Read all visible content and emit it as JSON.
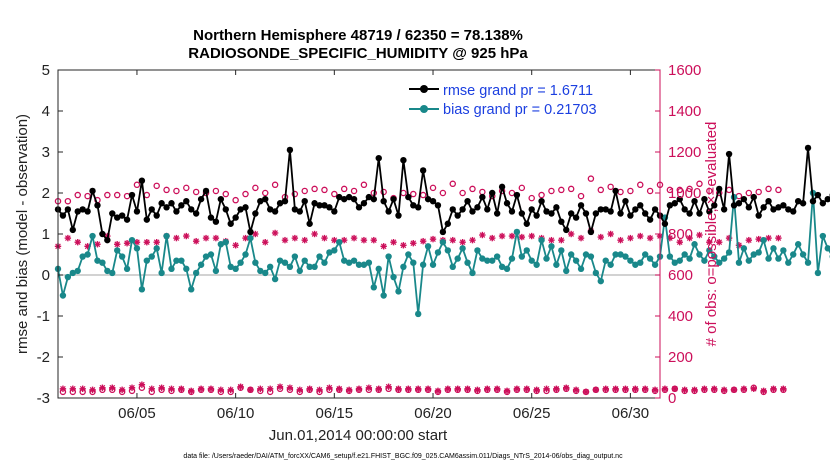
{
  "chart_data": {
    "type": "line",
    "title": "Northern Hemisphere 48719 / 62350 = 78.138%",
    "subtitle": "RADIOSONDE_SPECIFIC_HUMIDITY @ 925 hPa",
    "xlabel": "Jun.01,2014 00:00:00 start",
    "ylabel": "rmse and bias (model - observation)",
    "ylabel_right": "# of obs: o=possible; ×=evaluated",
    "footer": "data file: /Users/raeder/DAI/ATM_forcXX/CAM6_setup/f.e21.FHIST_BGC.f09_025.CAM6assim.011/Diags_NTrS_2014-06/obs_diag_output.nc",
    "xlim": [
      1.0,
      31.5
    ],
    "ylim": [
      -3,
      5
    ],
    "ylim_right": [
      0,
      1600
    ],
    "x_ticks": [
      5,
      10,
      15,
      20,
      25,
      30
    ],
    "x_tick_labels": [
      "06/05",
      "06/10",
      "06/15",
      "06/20",
      "06/25",
      "06/30"
    ],
    "y_ticks": [
      -3,
      -2,
      -1,
      0,
      1,
      2,
      3,
      4,
      5
    ],
    "y_tick_labels": [
      "-3",
      "-2",
      "-1",
      "0",
      "1",
      "2",
      "3",
      "4",
      "5"
    ],
    "y_right_ticks": [
      0,
      200,
      400,
      600,
      800,
      1000,
      1200,
      1400,
      1600
    ],
    "y_right_tick_labels": [
      "0",
      "200",
      "400",
      "600",
      "800",
      "1000",
      "1200",
      "1400",
      "1600"
    ],
    "legend": [
      "rmse grand pr = 1.6711",
      "bias grand pr = 0.21703"
    ],
    "legend_position": "top-right",
    "x_start": 1.0,
    "x_step": 0.25,
    "series": [
      {
        "name": "rmse",
        "color": "#000000",
        "values": [
          1.6,
          1.45,
          1.6,
          1.1,
          1.55,
          1.6,
          1.55,
          2.05,
          1.7,
          1.0,
          0.85,
          1.5,
          1.4,
          1.45,
          1.35,
          1.95,
          1.55,
          2.3,
          1.35,
          1.6,
          1.45,
          1.75,
          1.65,
          1.75,
          1.55,
          1.7,
          1.8,
          1.6,
          1.5,
          1.85,
          2.05,
          1.4,
          1.3,
          1.85,
          1.6,
          1.25,
          1.4,
          1.6,
          1.65,
          1.05,
          1.5,
          1.8,
          1.85,
          1.6,
          1.55,
          1.75,
          1.8,
          3.05,
          1.6,
          1.55,
          1.8,
          1.25,
          1.75,
          1.7,
          1.7,
          1.65,
          1.55,
          1.9,
          1.85,
          1.9,
          1.85,
          1.65,
          1.75,
          1.9,
          1.85,
          2.85,
          1.8,
          1.55,
          1.85,
          1.45,
          2.8,
          1.9,
          1.7,
          1.65,
          2.55,
          1.85,
          1.8,
          1.7,
          1.05,
          1.25,
          1.6,
          1.45,
          1.6,
          1.8,
          1.55,
          1.65,
          1.9,
          1.6,
          2.0,
          1.5,
          2.15,
          1.75,
          1.55,
          1.95,
          1.5,
          1.25,
          1.6,
          1.45,
          1.8,
          1.55,
          1.5,
          1.65,
          1.3,
          1.1,
          1.5,
          1.4,
          1.7,
          1.5,
          1.05,
          1.5,
          1.6,
          1.6,
          1.55,
          2.05,
          1.5,
          1.8,
          1.45,
          1.6,
          1.7,
          1.5,
          1.35,
          1.6,
          1.45,
          1.25,
          1.7,
          1.75,
          1.85,
          1.6,
          1.5,
          1.8,
          1.5,
          1.85,
          1.55,
          1.7,
          2.1,
          1.6,
          2.95,
          1.7,
          1.75,
          1.85,
          1.65,
          1.9,
          1.45,
          1.65,
          1.8,
          1.6,
          1.65,
          1.7,
          1.6,
          1.55,
          1.8,
          1.75,
          3.1,
          1.8,
          1.95,
          1.75,
          1.85,
          1.95,
          2.65
        ]
      },
      {
        "name": "bias",
        "color": "#19888a",
        "values": [
          0.15,
          -0.5,
          -0.05,
          0.05,
          0.1,
          0.45,
          0.5,
          0.95,
          0.35,
          0.3,
          0.1,
          0.05,
          0.6,
          0.45,
          0.15,
          0.85,
          0.65,
          -0.35,
          0.35,
          0.45,
          0.65,
          0.05,
          0.95,
          0.15,
          0.35,
          0.35,
          0.15,
          -0.35,
          0.05,
          0.25,
          0.45,
          0.5,
          0.1,
          0.75,
          0.8,
          0.2,
          0.15,
          0.3,
          0.5,
          0.9,
          0.3,
          0.1,
          0.05,
          0.2,
          -0.1,
          0.35,
          0.3,
          0.2,
          0.45,
          0.1,
          0.35,
          0.2,
          0.2,
          0.45,
          0.3,
          0.55,
          0.6,
          0.8,
          0.35,
          0.3,
          0.35,
          0.25,
          0.25,
          0.3,
          -0.3,
          0.15,
          -0.5,
          0.45,
          -0.05,
          -0.4,
          0.2,
          0.5,
          0.3,
          -0.95,
          0.25,
          0.7,
          0.25,
          0.55,
          0.8,
          0.6,
          0.2,
          0.4,
          0.65,
          0.3,
          0.05,
          0.6,
          0.4,
          0.35,
          0.35,
          0.45,
          0.2,
          0.15,
          0.4,
          1.05,
          0.45,
          0.6,
          0.35,
          0.25,
          0.85,
          0.4,
          0.7,
          0.25,
          0.6,
          0.1,
          0.5,
          0.35,
          0.15,
          0.5,
          0.45,
          0.05,
          -0.15,
          0.35,
          0.25,
          0.5,
          0.5,
          0.45,
          0.35,
          0.25,
          0.3,
          0.5,
          0.4,
          0.25,
          0.45,
          1.4,
          0.45,
          0.3,
          0.35,
          0.5,
          0.4,
          0.75,
          0.5,
          0.35,
          0.6,
          0.45,
          0.3,
          0.4,
          0.55,
          1.9,
          0.3,
          0.65,
          0.35,
          0.5,
          0.55,
          0.85,
          0.4,
          0.65,
          0.4,
          0.6,
          0.3,
          0.5,
          0.75,
          0.5,
          0.3,
          2.0,
          0.05,
          0.95,
          0.65,
          0.45,
          0.3,
          0.5
        ]
      },
      {
        "name": "possible",
        "color": "#cc0f5a",
        "values": [
          960,
          30,
          960,
          30,
          990,
          30,
          985,
          30,
          965,
          40,
          990,
          40,
          990,
          30,
          985,
          35,
          1040,
          50,
          990,
          30,
          1035,
          40,
          1015,
          35,
          1010,
          40,
          1025,
          30,
          1005,
          40,
          1000,
          40,
          1010,
          30,
          995,
          30,
          965,
          50,
          995,
          40,
          1025,
          35,
          1000,
          30,
          1040,
          45,
          980,
          40,
          995,
          30,
          1010,
          40,
          1020,
          30,
          1015,
          40,
          995,
          40,
          1020,
          35,
          1010,
          40,
          1040,
          40,
          1000,
          40,
          1005,
          45,
          975,
          40,
          1000,
          40,
          995,
          40,
          990,
          40,
          1025,
          30,
          1000,
          40,
          1045,
          40,
          1000,
          40,
          1020,
          35,
          1005,
          40,
          985,
          40,
          1010,
          30,
          1000,
          40,
          1025,
          40,
          975,
          35,
          990,
          35,
          1010,
          40,
          1015,
          45,
          1020,
          35,
          985,
          30,
          1070,
          40,
          1015,
          40,
          1030,
          40,
          1005,
          40,
          1010,
          40,
          1040,
          40,
          1010,
          35,
          1040,
          40,
          1015,
          45,
          1015,
          35,
          1020,
          35,
          1045,
          40,
          1010,
          40,
          1000,
          35,
          1015,
          40,
          985,
          40,
          1000,
          50,
          1005,
          30,
          1020,
          40,
          1015,
          40
        ]
      },
      {
        "name": "evaluated",
        "color": "#cc0f5a",
        "values": [
          740,
          45,
          780,
          45,
          760,
          45,
          740,
          40,
          750,
          50,
          790,
          50,
          750,
          40,
          755,
          50,
          760,
          65,
          760,
          45,
          760,
          50,
          790,
          45,
          780,
          45,
          790,
          35,
          765,
          45,
          780,
          45,
          780,
          40,
          765,
          40,
          745,
          55,
          780,
          40,
          800,
          45,
          760,
          45,
          805,
          55,
          770,
          50,
          780,
          40,
          770,
          45,
          800,
          40,
          780,
          50,
          770,
          45,
          770,
          40,
          780,
          45,
          770,
          50,
          770,
          45,
          740,
          55,
          760,
          45,
          745,
          45,
          755,
          45,
          765,
          45,
          775,
          35,
          770,
          45,
          770,
          45,
          760,
          45,
          770,
          40,
          795,
          45,
          780,
          45,
          790,
          35,
          790,
          45,
          785,
          45,
          790,
          40,
          780,
          45,
          770,
          45,
          770,
          50,
          800,
          40,
          780,
          30,
          815,
          40,
          785,
          45,
          800,
          45,
          770,
          45,
          780,
          45,
          790,
          45,
          780,
          40,
          790,
          45,
          780,
          45,
          760,
          40,
          780,
          40,
          795,
          45,
          760,
          45,
          760,
          40,
          780,
          40,
          745,
          45,
          770,
          45,
          775,
          35,
          780,
          45,
          780,
          45
        ]
      }
    ]
  }
}
